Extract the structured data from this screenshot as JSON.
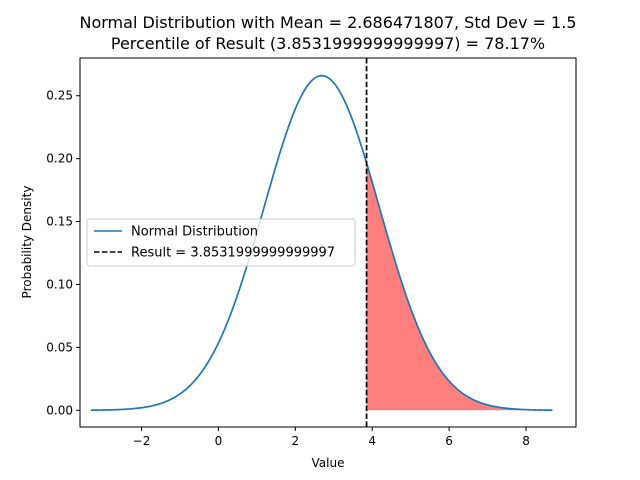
{
  "chart_data": {
    "type": "line",
    "title_line1": "Normal Distribution with Mean = 2.686471807, Std Dev = 1.5",
    "title_line2": "Percentile of Result (3.8531999999999997) = 78.17%",
    "xlabel": "Value",
    "ylabel": "Probability Density",
    "xlim": [
      -3.6,
      9.3
    ],
    "ylim": [
      -0.0133,
      0.28
    ],
    "x_ticks": [
      -2,
      0,
      2,
      4,
      6,
      8
    ],
    "x_tick_labels": [
      "−2",
      "0",
      "2",
      "4",
      "6",
      "8"
    ],
    "y_ticks": [
      0.0,
      0.05,
      0.1,
      0.15,
      0.2,
      0.25
    ],
    "y_tick_labels": [
      "0.00",
      "0.05",
      "0.10",
      "0.15",
      "0.20",
      "0.25"
    ],
    "mean": 2.686471807,
    "std_dev": 1.5,
    "curve_x_range": [
      -3.3135,
      8.6865
    ],
    "result": 3.8531999999999997,
    "percentile": 78.17,
    "grid": false,
    "legend_placement": "center-left",
    "series": [
      {
        "name": "Normal Distribution",
        "color": "#1f77b4",
        "style": "solid"
      },
      {
        "name": "Result = 3.8531999999999997",
        "color": "#000000",
        "style": "dashed"
      }
    ],
    "fill_color": "#ff7f7f"
  }
}
